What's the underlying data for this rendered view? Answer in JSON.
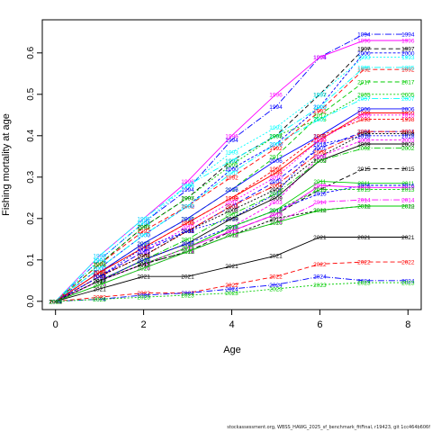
{
  "chart_data": {
    "type": "line",
    "title": "",
    "xlabel": "Age",
    "ylabel": "Fishing mortality at age",
    "xlim": [
      -0.3,
      8.3
    ],
    "ylim": [
      -0.02,
      0.68
    ],
    "x_ticks": [
      "0",
      "2",
      "4",
      "6",
      "8"
    ],
    "y_ticks": [
      "0.0",
      "0.1",
      "0.2",
      "0.3",
      "0.4",
      "0.5",
      "0.6"
    ],
    "grid": false,
    "legend": "none; each point is labelled with its year",
    "ages": [
      0,
      1,
      2,
      3,
      4,
      5,
      6,
      7,
      8
    ],
    "series": [
      {
        "name": "1994",
        "color": "#0000ff",
        "dash": "7,2,1,2",
        "values": [
          0.0,
          0.1,
          0.19,
          0.27,
          0.39,
          0.47,
          0.59,
          0.645,
          0.645
        ]
      },
      {
        "name": "1996",
        "color": "#ff00ff",
        "dash": "",
        "values": [
          0.0,
          0.11,
          0.2,
          0.29,
          0.4,
          0.5,
          0.59,
          0.63,
          0.63
        ]
      },
      {
        "name": "1997",
        "color": "#000000",
        "dash": "5,3",
        "values": [
          0.0,
          0.09,
          0.18,
          0.25,
          0.34,
          0.4,
          0.5,
          0.61,
          0.61
        ]
      },
      {
        "name": "2000",
        "color": "#0000ff",
        "dash": "3,2",
        "values": [
          0.0,
          0.08,
          0.16,
          0.23,
          0.32,
          0.38,
          0.47,
          0.6,
          0.6
        ]
      },
      {
        "name": "1993",
        "color": "#00ffff",
        "dash": "2,2",
        "values": [
          0.0,
          0.1,
          0.19,
          0.28,
          0.36,
          0.42,
          0.5,
          0.59,
          0.59
        ]
      },
      {
        "name": "1992",
        "color": "#ff0000",
        "dash": "5,3",
        "values": [
          0.0,
          0.09,
          0.17,
          0.23,
          0.3,
          0.37,
          0.46,
          0.56,
          0.56
        ]
      },
      {
        "name": "1995",
        "color": "#00ffff",
        "dash": "7,2,1,2",
        "values": [
          0.0,
          0.11,
          0.2,
          0.28,
          0.34,
          0.4,
          0.47,
          0.565,
          0.565
        ]
      },
      {
        "name": "2017",
        "color": "#00cd00",
        "dash": "5,3",
        "values": [
          0.0,
          0.07,
          0.14,
          0.2,
          0.27,
          0.35,
          0.45,
          0.53,
          0.53
        ]
      },
      {
        "name": "2005",
        "color": "#00cd00",
        "dash": "2,2",
        "values": [
          0.0,
          0.09,
          0.18,
          0.25,
          0.33,
          0.4,
          0.44,
          0.5,
          0.5
        ]
      },
      {
        "name": "2007",
        "color": "#00ffff",
        "dash": "7,2,1,2",
        "values": [
          0.0,
          0.08,
          0.16,
          0.23,
          0.31,
          0.38,
          0.44,
          0.49,
          0.49
        ]
      },
      {
        "name": "2006",
        "color": "#0000ff",
        "dash": "",
        "values": [
          0.0,
          0.07,
          0.14,
          0.2,
          0.27,
          0.34,
          0.4,
          0.465,
          0.465
        ]
      },
      {
        "name": "1999",
        "color": "#ff0000",
        "dash": "",
        "values": [
          0.0,
          0.07,
          0.13,
          0.19,
          0.25,
          0.31,
          0.39,
          0.455,
          0.455
        ]
      },
      {
        "name": "2010",
        "color": "#ff00ff",
        "dash": "2,2",
        "values": [
          0.0,
          0.06,
          0.12,
          0.18,
          0.24,
          0.3,
          0.39,
          0.45,
          0.45
        ]
      },
      {
        "name": "1998",
        "color": "#ff0000",
        "dash": "3,2",
        "values": [
          0.0,
          0.07,
          0.13,
          0.19,
          0.25,
          0.32,
          0.4,
          0.44,
          0.44
        ]
      },
      {
        "name": "2001",
        "color": "#0000ff",
        "dash": "5,3",
        "values": [
          0.0,
          0.06,
          0.12,
          0.17,
          0.23,
          0.29,
          0.37,
          0.41,
          0.41
        ]
      },
      {
        "name": "2004",
        "color": "#ff0000",
        "dash": "7,2,1,2",
        "values": [
          0.0,
          0.06,
          0.11,
          0.17,
          0.23,
          0.28,
          0.36,
          0.41,
          0.41
        ]
      },
      {
        "name": "2008",
        "color": "#000000",
        "dash": "2,2",
        "values": [
          0.0,
          0.06,
          0.11,
          0.17,
          0.22,
          0.27,
          0.35,
          0.405,
          0.405
        ]
      },
      {
        "name": "2018",
        "color": "#0000ff",
        "dash": "2,2",
        "values": [
          0.0,
          0.06,
          0.13,
          0.17,
          0.2,
          0.26,
          0.38,
          0.4,
          0.4
        ]
      },
      {
        "name": "2003",
        "color": "#ff00ff",
        "dash": "3,2",
        "values": [
          0.0,
          0.05,
          0.09,
          0.13,
          0.18,
          0.24,
          0.35,
          0.39,
          0.39
        ]
      },
      {
        "name": "2009",
        "color": "#000000",
        "dash": "",
        "values": [
          0.0,
          0.05,
          0.1,
          0.14,
          0.2,
          0.25,
          0.34,
          0.38,
          0.38
        ]
      },
      {
        "name": "2002",
        "color": "#00cd00",
        "dash": "7,2,1,2",
        "values": [
          0.0,
          0.05,
          0.1,
          0.15,
          0.21,
          0.26,
          0.34,
          0.37,
          0.37
        ]
      },
      {
        "name": "2015",
        "color": "#000000",
        "dash": "5,3",
        "values": [
          0.0,
          0.05,
          0.09,
          0.12,
          0.17,
          0.21,
          0.27,
          0.32,
          0.32
        ]
      },
      {
        "name": "2011",
        "color": "#00cd00",
        "dash": "",
        "values": [
          0.0,
          0.05,
          0.09,
          0.13,
          0.18,
          0.22,
          0.29,
          0.285,
          0.285
        ]
      },
      {
        "name": "2016",
        "color": "#0000ff",
        "dash": "3,2",
        "values": [
          0.0,
          0.05,
          0.1,
          0.14,
          0.18,
          0.22,
          0.26,
          0.28,
          0.28
        ]
      },
      {
        "name": "2019",
        "color": "#ff00ff",
        "dash": "",
        "values": [
          0.0,
          0.05,
          0.09,
          0.13,
          0.17,
          0.21,
          0.28,
          0.275,
          0.275
        ]
      },
      {
        "name": "2013",
        "color": "#00cd00",
        "dash": "3,2",
        "values": [
          0.0,
          0.05,
          0.09,
          0.13,
          0.18,
          0.22,
          0.27,
          0.27,
          0.27
        ]
      },
      {
        "name": "2012",
        "color": "#000000",
        "dash": "3,2",
        "values": [
          0.0,
          0.05,
          0.09,
          0.12,
          0.16,
          0.2,
          0.22,
          0.23,
          0.23
        ]
      },
      {
        "name": "2014",
        "color": "#ff00ff",
        "dash": "7,2,1,2",
        "values": [
          0.0,
          0.04,
          0.08,
          0.12,
          0.16,
          0.19,
          0.24,
          0.245,
          0.245
        ]
      },
      {
        "name": "2020",
        "color": "#00cd00",
        "dash": "",
        "values": [
          0.0,
          0.04,
          0.08,
          0.12,
          0.16,
          0.19,
          0.22,
          0.23,
          0.23
        ]
      },
      {
        "name": "2021",
        "color": "#000000",
        "dash": "",
        "values": [
          0.0,
          0.03,
          0.06,
          0.06,
          0.085,
          0.11,
          0.155,
          0.155,
          0.155
        ]
      },
      {
        "name": "2022",
        "color": "#ff0000",
        "dash": "5,3",
        "values": [
          0.0,
          0.01,
          0.02,
          0.02,
          0.04,
          0.06,
          0.09,
          0.095,
          0.095
        ]
      },
      {
        "name": "2024",
        "color": "#0000ff",
        "dash": "7,2,1,2",
        "values": [
          0.0,
          0.005,
          0.015,
          0.02,
          0.03,
          0.04,
          0.06,
          0.05,
          0.05
        ]
      },
      {
        "name": "2023",
        "color": "#00cd00",
        "dash": "2,2",
        "values": [
          0.0,
          0.005,
          0.01,
          0.015,
          0.02,
          0.03,
          0.04,
          0.045,
          0.045
        ]
      }
    ]
  },
  "footer": "stockassessment.org, WBSS_HAWG_2025_sf_benchmark_fitFinal, r19423, git 1cc464b606f"
}
